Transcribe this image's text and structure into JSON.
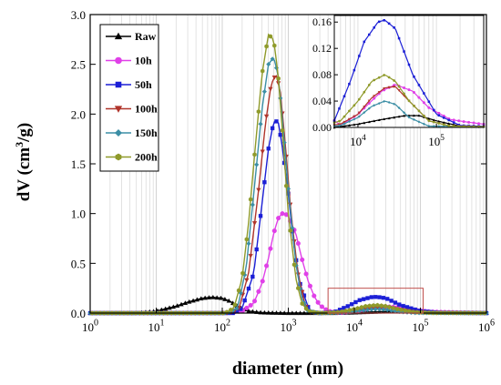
{
  "chart_data": [
    {
      "type": "line",
      "xlabel": "diameter (nm)",
      "ylabel": {
        "base": "dV (cm",
        "sup": "3",
        "tail": "/g)"
      },
      "x_scale": "log",
      "xlim": [
        1,
        1000000
      ],
      "ylim": [
        0,
        3.0
      ],
      "x_ticks": [
        {
          "base": "10",
          "exp": "0"
        },
        {
          "base": "10",
          "exp": "1"
        },
        {
          "base": "10",
          "exp": "2"
        },
        {
          "base": "10",
          "exp": "3"
        },
        {
          "base": "10",
          "exp": "4"
        },
        {
          "base": "10",
          "exp": "5"
        },
        {
          "base": "10",
          "exp": "6"
        }
      ],
      "y_ticks": [
        "0.0",
        "0.5",
        "1.0",
        "1.5",
        "2.0",
        "2.5",
        "3.0"
      ],
      "grid": "vertical minor lines on log x-axis",
      "legend_position": "top-left",
      "highlight_box": {
        "x": [
          4000,
          110000
        ],
        "y": [
          0,
          0.25
        ],
        "color": "#c0504d"
      },
      "series": [
        {
          "name": "Raw",
          "color": "#000000",
          "marker": "triangle-up",
          "x": [
            1,
            5,
            10,
            20,
            30,
            50,
            70,
            100,
            130,
            180,
            250,
            400,
            1000,
            5000,
            10000,
            20000,
            40000,
            60000,
            100000,
            200000,
            1000000
          ],
          "y": [
            0,
            0,
            0.02,
            0.07,
            0.11,
            0.15,
            0.16,
            0.15,
            0.12,
            0.06,
            0.02,
            0.005,
            0,
            0,
            0.005,
            0.012,
            0.018,
            0.018,
            0.01,
            0.002,
            0
          ]
        },
        {
          "name": "10h",
          "color": "#e040e8",
          "marker": "circle",
          "x": [
            1,
            100,
            200,
            300,
            400,
            500,
            600,
            700,
            800,
            900,
            1000,
            1300,
            1600,
            2000,
            2500,
            3000,
            4000,
            6000,
            10000,
            20000,
            30000,
            50000,
            80000,
            150000,
            250000,
            400000,
            1000000
          ],
          "y": [
            0,
            0,
            0.02,
            0.1,
            0.3,
            0.55,
            0.8,
            0.95,
            1.0,
            1.0,
            0.97,
            0.8,
            0.55,
            0.32,
            0.16,
            0.08,
            0.02,
            0.003,
            0.02,
            0.055,
            0.065,
            0.055,
            0.03,
            0.012,
            0.008,
            0.005,
            0
          ]
        },
        {
          "name": "50h",
          "color": "#1b1fd6",
          "marker": "square",
          "x": [
            1,
            150,
            200,
            300,
            400,
            500,
            600,
            700,
            800,
            1000,
            1200,
            1500,
            2000,
            2300,
            3000,
            5000,
            8000,
            12000,
            18000,
            22000,
            30000,
            50000,
            100000,
            200000,
            1000000
          ],
          "y": [
            0,
            0,
            0.05,
            0.4,
            1.1,
            1.65,
            1.92,
            1.93,
            1.7,
            1.2,
            0.7,
            0.3,
            0.06,
            0.01,
            0,
            0.01,
            0.07,
            0.13,
            0.16,
            0.163,
            0.15,
            0.08,
            0.02,
            0.003,
            0
          ]
        },
        {
          "name": "100h",
          "color": "#b0342a",
          "marker": "triangle-down",
          "x": [
            1,
            130,
            180,
            250,
            350,
            450,
            550,
            650,
            750,
            900,
            1100,
            1400,
            1800,
            2100,
            3000,
            6000,
            10000,
            15000,
            22000,
            30000,
            45000,
            80000,
            150000,
            1000000
          ],
          "y": [
            0,
            0,
            0.05,
            0.4,
            1.2,
            1.9,
            2.3,
            2.4,
            2.25,
            1.7,
            1.0,
            0.4,
            0.08,
            0.01,
            0,
            0.005,
            0.02,
            0.045,
            0.06,
            0.062,
            0.04,
            0.01,
            0.002,
            0
          ]
        },
        {
          "name": "150h",
          "color": "#3b8ea5",
          "marker": "diamond",
          "x": [
            1,
            120,
            170,
            230,
            300,
            400,
            500,
            600,
            700,
            800,
            1000,
            1300,
            1600,
            2000,
            3000,
            6000,
            10000,
            15000,
            22000,
            30000,
            45000,
            80000,
            1000000
          ],
          "y": [
            0,
            0,
            0.05,
            0.45,
            1.2,
            2.05,
            2.5,
            2.57,
            2.4,
            2.0,
            1.25,
            0.5,
            0.15,
            0.02,
            0,
            0.003,
            0.015,
            0.032,
            0.04,
            0.035,
            0.015,
            0.002,
            0
          ]
        },
        {
          "name": "200h",
          "color": "#8f9a2a",
          "marker": "hexagon",
          "x": [
            1,
            110,
            150,
            200,
            250,
            300,
            400,
            500,
            600,
            700,
            800,
            1000,
            1300,
            1600,
            2000,
            3000,
            6000,
            10000,
            15000,
            22000,
            30000,
            45000,
            80000,
            150000,
            1000000
          ],
          "y": [
            0,
            0,
            0.05,
            0.35,
            0.9,
            1.5,
            2.4,
            2.8,
            2.75,
            2.4,
            1.9,
            1.0,
            0.35,
            0.1,
            0.02,
            0,
            0.01,
            0.04,
            0.07,
            0.08,
            0.07,
            0.04,
            0.01,
            0.002,
            0
          ]
        }
      ]
    },
    {
      "type": "line",
      "role": "inset",
      "x_scale": "log",
      "xlim": [
        5000,
        400000
      ],
      "ylim": [
        0,
        0.17
      ],
      "x_ticks": [
        {
          "base": "10",
          "exp": "4"
        },
        {
          "base": "10",
          "exp": "5"
        }
      ],
      "y_ticks": [
        "0.00",
        "0.04",
        "0.08",
        "0.12",
        "0.16"
      ]
    }
  ]
}
